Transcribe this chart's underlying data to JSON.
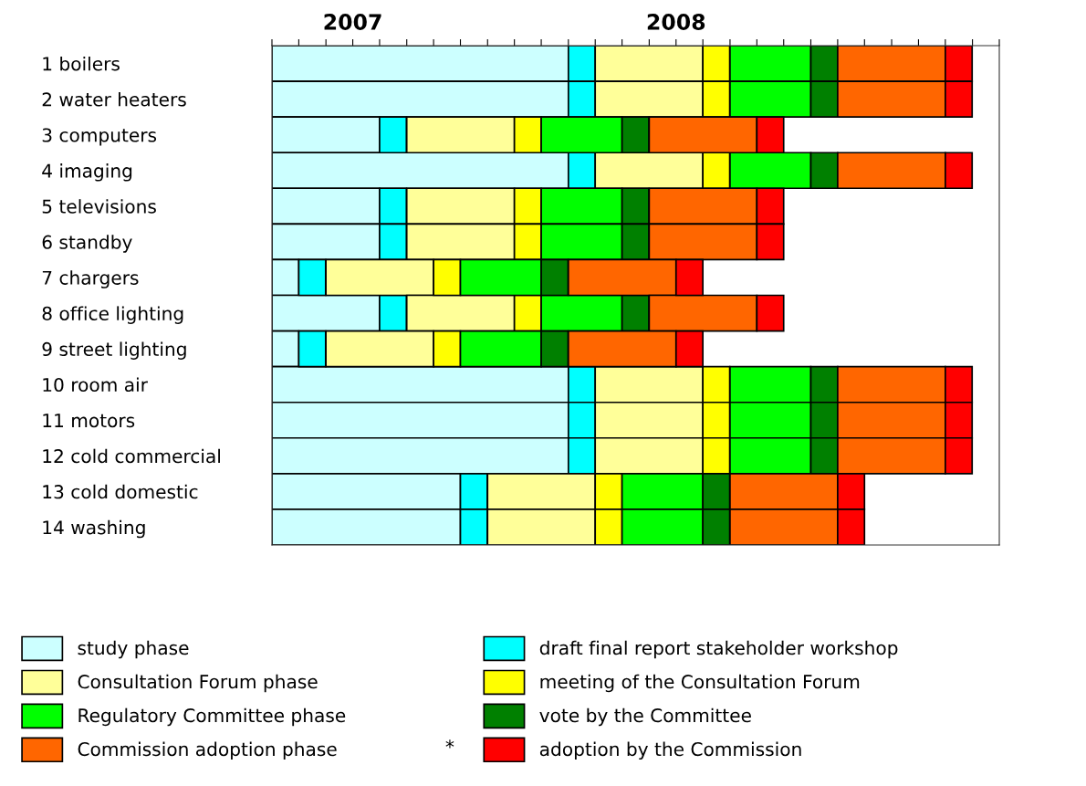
{
  "chart_data": {
    "type": "bar",
    "orientation": "horizontal",
    "categories": [
      "1 boilers",
      "2 water heaters",
      "3 computers",
      "4 imaging",
      "5 televisions",
      "6 standby",
      "7 chargers",
      "8 office lighting",
      "9 street lighting",
      "10 room air",
      "11 motors",
      "12 cold commercial",
      "13 cold domestic",
      "14 washing"
    ],
    "series": [
      {
        "name": "study phase",
        "color": "#ccffff",
        "values": [
          0.917,
          0.917,
          0.333,
          0.917,
          0.333,
          0.333,
          0.083,
          0.333,
          0.083,
          0.917,
          0.917,
          0.917,
          0.583,
          0.583
        ],
        "base": [
          2006.75,
          2006.75,
          2006.75,
          2006.75,
          2006.75,
          2006.75,
          2006.75,
          2006.75,
          2006.75,
          2006.75,
          2006.75,
          2006.75,
          2006.75,
          2006.75
        ]
      },
      {
        "name": "draft final report stakeholder workshop",
        "color": "#00ffff",
        "values": [
          0.083,
          0.083,
          0.083,
          0.083,
          0.083,
          0.083,
          0.083,
          0.083,
          0.083,
          0.083,
          0.083,
          0.083,
          0.083,
          0.083
        ],
        "base": [
          2007.667,
          2007.667,
          2007.083,
          2007.667,
          2007.083,
          2007.083,
          2006.833,
          2007.083,
          2006.833,
          2007.667,
          2007.667,
          2007.667,
          2007.333,
          2007.333
        ]
      },
      {
        "name": "Consultation Forum phase",
        "color": "#ffff99",
        "values": [
          0.333,
          0.333,
          0.333,
          0.333,
          0.333,
          0.333,
          0.333,
          0.333,
          0.333,
          0.333,
          0.333,
          0.333,
          0.333,
          0.333
        ],
        "base": [
          2007.75,
          2007.75,
          2007.167,
          2007.75,
          2007.167,
          2007.167,
          2006.917,
          2007.167,
          2006.917,
          2007.75,
          2007.75,
          2007.75,
          2007.417,
          2007.417
        ]
      },
      {
        "name": "meeting of the Consultation Forum",
        "color": "#ffff00",
        "values": [
          0.083,
          0.083,
          0.083,
          0.083,
          0.083,
          0.083,
          0.083,
          0.083,
          0.083,
          0.083,
          0.083,
          0.083,
          0.083,
          0.083
        ],
        "base": [
          2008.083,
          2008.083,
          2007.5,
          2008.083,
          2007.5,
          2007.5,
          2007.25,
          2007.5,
          2007.25,
          2008.083,
          2008.083,
          2008.083,
          2007.75,
          2007.75
        ]
      },
      {
        "name": "Regulatory Committee phase",
        "color": "#00ff00",
        "values": [
          0.25,
          0.25,
          0.25,
          0.25,
          0.25,
          0.25,
          0.25,
          0.25,
          0.25,
          0.25,
          0.25,
          0.25,
          0.25,
          0.25
        ],
        "base": [
          2008.167,
          2008.167,
          2007.583,
          2008.167,
          2007.583,
          2007.583,
          2007.333,
          2007.583,
          2007.333,
          2008.167,
          2008.167,
          2008.167,
          2007.833,
          2007.833
        ]
      },
      {
        "name": "vote by the Committee",
        "color": "#008000",
        "values": [
          0.083,
          0.083,
          0.083,
          0.083,
          0.083,
          0.083,
          0.083,
          0.083,
          0.083,
          0.083,
          0.083,
          0.083,
          0.083,
          0.083
        ],
        "base": [
          2008.417,
          2008.417,
          2007.833,
          2008.417,
          2007.833,
          2007.833,
          2007.583,
          2007.833,
          2007.583,
          2008.417,
          2008.417,
          2008.417,
          2008.083,
          2008.083
        ]
      },
      {
        "name": "Commission adoption phase",
        "color": "#ff6600",
        "values": [
          0.333,
          0.333,
          0.333,
          0.333,
          0.333,
          0.333,
          0.333,
          0.333,
          0.333,
          0.333,
          0.333,
          0.333,
          0.333,
          0.333
        ],
        "base": [
          2008.5,
          2008.5,
          2007.917,
          2008.5,
          2007.917,
          2007.917,
          2007.667,
          2007.917,
          2007.667,
          2008.5,
          2008.5,
          2008.5,
          2008.167,
          2008.167
        ]
      },
      {
        "name": "adoption by the Commission",
        "color": "#ff0000",
        "values": [
          0.083,
          0.083,
          0.083,
          0.083,
          0.083,
          0.083,
          0.083,
          0.083,
          0.083,
          0.083,
          0.083,
          0.083,
          0.083,
          0.083
        ],
        "base": [
          2008.833,
          2008.833,
          2008.25,
          2008.833,
          2008.25,
          2008.25,
          2008,
          2008.25,
          2008,
          2008.833,
          2008.833,
          2008.833,
          2008.5,
          2008.5
        ]
      }
    ],
    "xlim": [
      2006.75,
      2009
    ],
    "xticks": [
      {
        "value": 2006.75,
        "label": null
      },
      {
        "value": 2006.833,
        "label": null
      },
      {
        "value": 2006.917,
        "label": null
      },
      2007,
      {
        "value": 2007.083,
        "label": null
      },
      {
        "value": 2007.167,
        "label": null
      },
      {
        "value": 2007.25,
        "label": null
      },
      {
        "value": 2007.333,
        "label": null
      },
      {
        "value": 2007.417,
        "label": null
      },
      {
        "value": 2007.5,
        "label": null
      },
      {
        "value": 2007.583,
        "label": null
      },
      {
        "value": 2007.667,
        "label": null
      },
      {
        "value": 2007.75,
        "label": null
      },
      {
        "value": 2007.833,
        "label": null
      },
      {
        "value": 2007.917,
        "label": null
      },
      2008,
      {
        "value": 2008.083,
        "label": null
      },
      {
        "value": 2008.167,
        "label": null
      },
      {
        "value": 2008.25,
        "label": null
      },
      {
        "value": 2008.333,
        "label": null
      },
      {
        "value": 2008.417,
        "label": null
      },
      {
        "value": 2008.5,
        "label": null
      },
      {
        "value": 2008.583,
        "label": null
      },
      {
        "value": 2008.667,
        "label": null
      },
      {
        "value": 2008.75,
        "label": null
      },
      {
        "value": 2008.833,
        "label": null
      },
      {
        "value": 2008.917,
        "label": null
      },
      {
        "value": 2009,
        "label": null
      }
    ],
    "legend": "bottom",
    "annotations": [
      "*"
    ]
  }
}
